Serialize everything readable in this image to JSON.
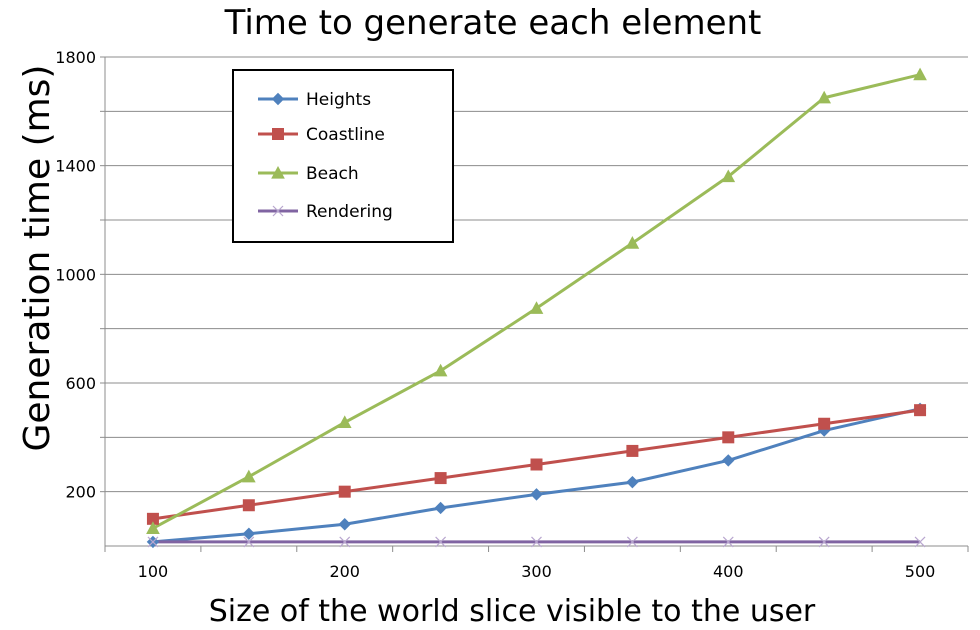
{
  "chart_data": {
    "type": "line",
    "title": "Time to generate each element",
    "xlabel": "Size of the world slice visible to the user",
    "ylabel": "Generation time (ms)",
    "x": [
      100,
      150,
      200,
      250,
      300,
      350,
      400,
      450,
      500
    ],
    "xlim": [
      75,
      525
    ],
    "ylim": [
      0,
      1800
    ],
    "x_ticks": [
      100,
      200,
      300,
      400,
      500
    ],
    "x_tick_labels": [
      "100",
      "200",
      "300",
      "400",
      "500"
    ],
    "y_ticks": [
      200,
      600,
      1000,
      1400,
      1800
    ],
    "y_tick_labels": [
      "200",
      "600",
      "1000",
      "1400",
      "1800"
    ],
    "y_gridlines": [
      200,
      400,
      600,
      800,
      1000,
      1200,
      1400,
      1600,
      1800
    ],
    "grid": true,
    "legend_position": "top-left",
    "series": [
      {
        "name": "Heights",
        "color": "#4f81bd",
        "marker": "diamond",
        "values": [
          15,
          45,
          80,
          140,
          190,
          235,
          315,
          425,
          505
        ]
      },
      {
        "name": "Coastline",
        "color": "#c0504d",
        "marker": "square",
        "values": [
          100,
          150,
          200,
          250,
          300,
          350,
          400,
          450,
          500
        ]
      },
      {
        "name": "Beach",
        "color": "#9bbb59",
        "marker": "triangle",
        "values": [
          65,
          255,
          455,
          645,
          875,
          1115,
          1360,
          1650,
          1735
        ]
      },
      {
        "name": "Rendering",
        "color": "#8064a2",
        "marker": "x",
        "values": [
          15,
          15,
          15,
          15,
          15,
          15,
          15,
          15,
          15
        ]
      }
    ]
  }
}
